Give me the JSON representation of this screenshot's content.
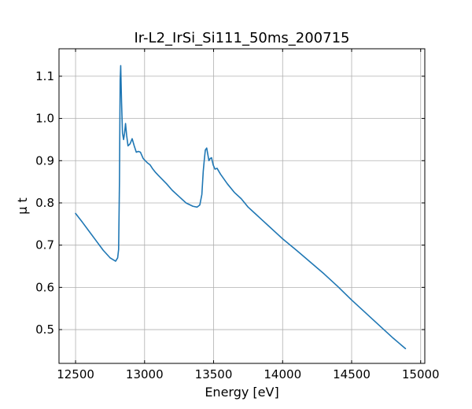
{
  "chart_data": {
    "type": "line",
    "title": "Ir-L2_IrSi_Si111_50ms_200715",
    "xlabel": "Energy [eV]",
    "ylabel": "μ t",
    "xlim": [
      12380,
      15030
    ],
    "ylim": [
      0.42,
      1.165
    ],
    "grid": true,
    "xticks": [
      12500,
      13000,
      13500,
      14000,
      14500,
      15000
    ],
    "xtick_labels": [
      "12500",
      "13000",
      "13500",
      "14000",
      "14500",
      "15000"
    ],
    "yticks": [
      0.5,
      0.6,
      0.7,
      0.8,
      0.9,
      1.0,
      1.1
    ],
    "ytick_labels": [
      "0.5",
      "0.6",
      "0.7",
      "0.8",
      "0.9",
      "1.0",
      "1.1"
    ],
    "series": [
      {
        "color": "#1f77b4",
        "x": [
          12500,
          12550,
          12600,
          12650,
          12700,
          12750,
          12790,
          12805,
          12812,
          12818,
          12823,
          12827,
          12833,
          12840,
          12848,
          12855,
          12862,
          12870,
          12880,
          12895,
          12910,
          12925,
          12940,
          12955,
          12970,
          12990,
          13005,
          13020,
          13040,
          13060,
          13080,
          13100,
          13130,
          13160,
          13200,
          13250,
          13300,
          13350,
          13380,
          13400,
          13415,
          13425,
          13432,
          13440,
          13450,
          13458,
          13466,
          13475,
          13485,
          13497,
          13510,
          13525,
          13550,
          13600,
          13650,
          13700,
          13750,
          13800,
          13850,
          13900,
          13950,
          14000,
          14100,
          14200,
          14300,
          14400,
          14500,
          14600,
          14700,
          14800,
          14890
        ],
        "y": [
          0.775,
          0.754,
          0.732,
          0.71,
          0.688,
          0.67,
          0.662,
          0.67,
          0.69,
          0.85,
          1.09,
          1.125,
          1.04,
          0.965,
          0.95,
          0.965,
          0.988,
          0.96,
          0.935,
          0.94,
          0.952,
          0.935,
          0.92,
          0.922,
          0.92,
          0.905,
          0.9,
          0.895,
          0.89,
          0.88,
          0.872,
          0.865,
          0.855,
          0.845,
          0.83,
          0.815,
          0.8,
          0.792,
          0.79,
          0.795,
          0.82,
          0.875,
          0.9,
          0.925,
          0.93,
          0.915,
          0.9,
          0.905,
          0.907,
          0.89,
          0.88,
          0.882,
          0.868,
          0.845,
          0.825,
          0.81,
          0.79,
          0.775,
          0.76,
          0.745,
          0.73,
          0.715,
          0.688,
          0.66,
          0.632,
          0.602,
          0.57,
          0.54,
          0.51,
          0.48,
          0.455
        ]
      }
    ]
  }
}
